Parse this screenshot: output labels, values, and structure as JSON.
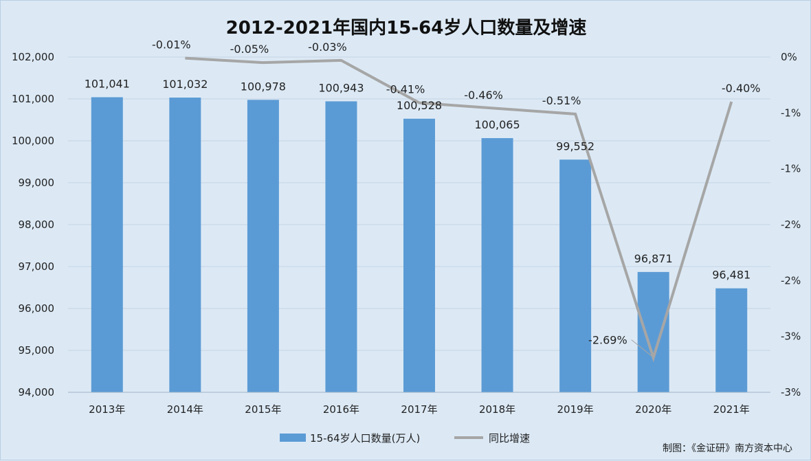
{
  "chart_data": {
    "type": "bar",
    "title": "2012-2021年国内15-64岁人口数量及增速",
    "categories": [
      "2013年",
      "2014年",
      "2015年",
      "2016年",
      "2017年",
      "2018年",
      "2019年",
      "2020年",
      "2021年"
    ],
    "series": [
      {
        "name": "15-64岁人口数量(万人)",
        "type": "bar",
        "axis": "left",
        "color": "#5b9bd5",
        "values": [
          101041,
          101032,
          100978,
          100943,
          100528,
          100065,
          99552,
          96871,
          96481
        ],
        "labels": [
          "101,041",
          "101,032",
          "100,978",
          "100,943",
          "100,528",
          "100,065",
          "99,552",
          "96,871",
          "96,481"
        ]
      },
      {
        "name": "同比增速",
        "type": "line",
        "axis": "right",
        "color": "#a6a6a6",
        "values": [
          null,
          -0.01,
          -0.05,
          -0.03,
          -0.41,
          -0.46,
          -0.51,
          -2.69,
          -0.4
        ],
        "labels": [
          "",
          "-0.01%",
          "-0.05%",
          "-0.03%",
          "-0.41%",
          "-0.46%",
          "-0.51%",
          "-2.69%",
          "-0.40%"
        ]
      }
    ],
    "y_left": {
      "min": 94000,
      "max": 102000,
      "ticks": [
        94000,
        95000,
        96000,
        97000,
        98000,
        99000,
        100000,
        101000,
        102000
      ],
      "tick_labels": [
        "94,000",
        "95,000",
        "96,000",
        "97,000",
        "98,000",
        "99,000",
        "100,000",
        "101,000",
        "102,000"
      ]
    },
    "y_right": {
      "min": -3,
      "max": 0,
      "ticks": [
        0,
        -0.5,
        -1,
        -1.5,
        -2,
        -2.5,
        -3
      ],
      "tick_labels": [
        "0%",
        "-1%",
        "-1%",
        "-2%",
        "-2%",
        "-3%",
        "-3%"
      ]
    },
    "grid": "horizontal",
    "legend": "bottom-center"
  },
  "source": "制图：《金证研》南方资本中心"
}
